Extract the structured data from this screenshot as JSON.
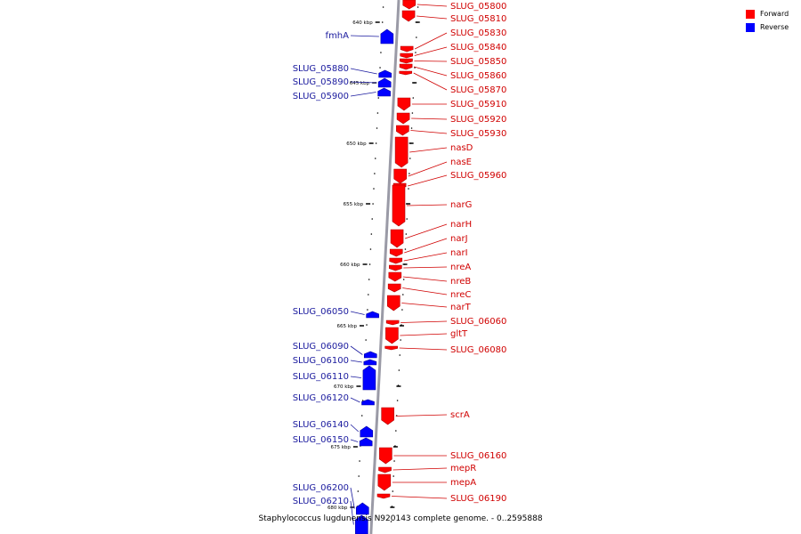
{
  "legend": [
    {
      "label": "Forward",
      "color": "#ff0000"
    },
    {
      "label": "Reverse",
      "color": "#0000ff"
    }
  ],
  "caption": "Staphylococcus lugdunensis N920143 complete genome. - 0..2595888",
  "axis": {
    "unit": "kbp",
    "ticks": [
      "640 kbp",
      "645 kbp",
      "650 kbp",
      "655 kbp",
      "660 kbp",
      "665 kbp",
      "670 kbp",
      "675 kbp",
      "680 kbp"
    ]
  },
  "colors": {
    "forward": "#ff0000",
    "reverse": "#0000ff",
    "forward_label": "#d00000",
    "reverse_label": "#1a1a9e",
    "backbone": "#808080"
  },
  "forward_genes": [
    "SLUG_05800",
    "SLUG_05810",
    "SLUG_05830",
    "SLUG_05840",
    "SLUG_05850",
    "SLUG_05860",
    "SLUG_05870",
    "SLUG_05910",
    "SLUG_05920",
    "SLUG_05930",
    "nasD",
    "nasE",
    "SLUG_05960",
    "narG",
    "narH",
    "narJ",
    "narI",
    "nreA",
    "nreB",
    "nreC",
    "narT",
    "SLUG_06060",
    "gltT",
    "SLUG_06080",
    "scrA",
    "SLUG_06160",
    "mepR",
    "mepA",
    "SLUG_06190"
  ],
  "reverse_genes": [
    "fmhA",
    "SLUG_05880",
    "SLUG_05890",
    "SLUG_05900",
    "SLUG_06050",
    "SLUG_06090",
    "SLUG_06100",
    "SLUG_06110",
    "SLUG_06120",
    "SLUG_06140",
    "SLUG_06150",
    "SLUG_06200",
    "SLUG_06210"
  ]
}
